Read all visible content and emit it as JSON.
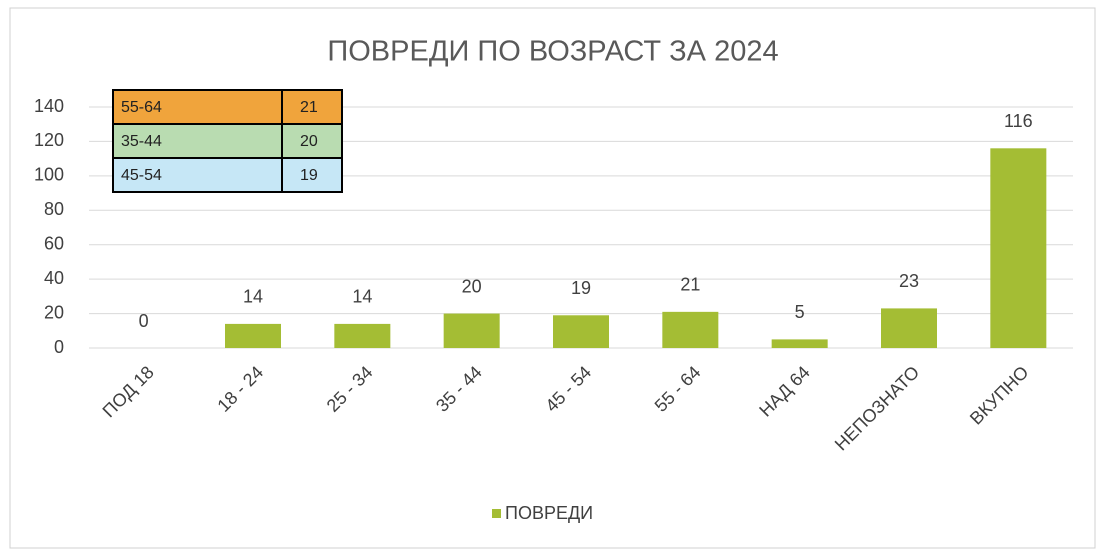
{
  "chart_data": {
    "type": "bar",
    "title": "ПОВРЕДИ ПО ВОЗРАСТ ЗА 2024",
    "categories": [
      "ПОД 18",
      "18 - 24",
      "25 - 34",
      "35 - 44",
      "45 - 54",
      "55 - 64",
      "НАД 64",
      "НЕПОЗНАТО",
      "ВКУПНО"
    ],
    "series": [
      {
        "name": "ПОВРЕДИ",
        "color": "#a4bd34",
        "values": [
          0,
          14,
          14,
          20,
          19,
          21,
          5,
          23,
          116
        ]
      }
    ],
    "ylim": [
      0,
      140
    ],
    "yticks": [
      0,
      20,
      40,
      60,
      80,
      100,
      120,
      140
    ],
    "grid": true,
    "legend": "bottom"
  },
  "table": {
    "rows": [
      [
        "55-64",
        21
      ],
      [
        "35-44",
        20
      ],
      [
        "45-54",
        19
      ]
    ],
    "colors": [
      "#f0a43c",
      "#b9dcb1",
      "#c6e7f6"
    ]
  }
}
